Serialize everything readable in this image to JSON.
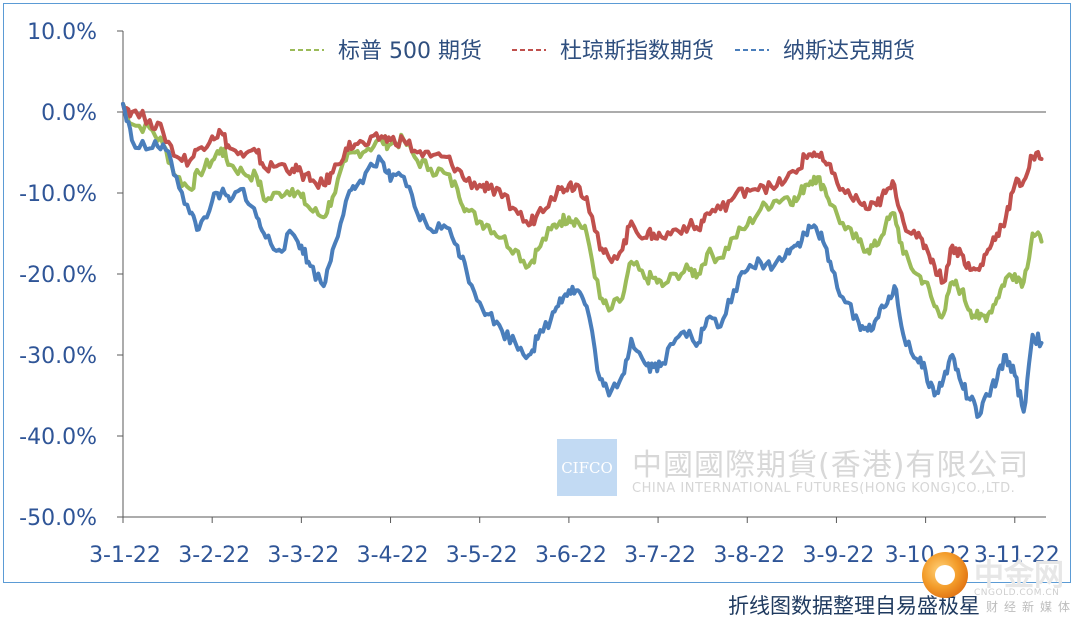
{
  "chart_data": {
    "type": "line",
    "title": "",
    "xlabel": "",
    "ylabel": "",
    "ylim": [
      -50,
      10
    ],
    "yticks": [
      10,
      0,
      -10,
      -20,
      -30,
      -40,
      -50
    ],
    "ytick_labels": [
      "10.0%",
      "0.0%",
      "-10.0%",
      "-20.0%",
      "-30.0%",
      "-40.0%",
      "-50.0%"
    ],
    "xticks": [
      0,
      1,
      2,
      3,
      4,
      5,
      6,
      7,
      8,
      9,
      10
    ],
    "xtick_labels": [
      "3-1-22",
      "3-2-22",
      "3-3-22",
      "3-4-22",
      "3-5-22",
      "3-6-22",
      "3-7-22",
      "3-8-22",
      "3-9-22",
      "3-10-22",
      "3-11-22"
    ],
    "xlim": [
      0,
      10.35
    ],
    "grid": false,
    "legend_position": "top",
    "series": [
      {
        "name": "标普 500 期货",
        "color": "#9bbb59",
        "points": [
          [
            0,
            1.0
          ],
          [
            0.1,
            -1.5
          ],
          [
            0.3,
            -2.0
          ],
          [
            0.45,
            -4.0
          ],
          [
            0.6,
            -8.0
          ],
          [
            0.75,
            -9.5
          ],
          [
            0.85,
            -7.5
          ],
          [
            1.0,
            -6.0
          ],
          [
            1.1,
            -4.5
          ],
          [
            1.2,
            -6.5
          ],
          [
            1.35,
            -7.5
          ],
          [
            1.5,
            -8.0
          ],
          [
            1.6,
            -11.0
          ],
          [
            1.75,
            -10.0
          ],
          [
            1.9,
            -9.5
          ],
          [
            2.0,
            -10.5
          ],
          [
            2.1,
            -12.0
          ],
          [
            2.25,
            -13.0
          ],
          [
            2.35,
            -10.5
          ],
          [
            2.5,
            -6.0
          ],
          [
            2.6,
            -5.0
          ],
          [
            2.75,
            -4.5
          ],
          [
            2.9,
            -3.5
          ],
          [
            3.0,
            -4.0
          ],
          [
            3.15,
            -3.5
          ],
          [
            3.3,
            -6.0
          ],
          [
            3.45,
            -7.0
          ],
          [
            3.6,
            -7.5
          ],
          [
            3.75,
            -9.5
          ],
          [
            3.85,
            -12.0
          ],
          [
            4.0,
            -13.5
          ],
          [
            4.1,
            -14.0
          ],
          [
            4.25,
            -15.5
          ],
          [
            4.4,
            -17.0
          ],
          [
            4.55,
            -19.0
          ],
          [
            4.65,
            -17.0
          ],
          [
            4.8,
            -14.5
          ],
          [
            4.9,
            -13.5
          ],
          [
            5.0,
            -13.0
          ],
          [
            5.1,
            -13.5
          ],
          [
            5.2,
            -15.0
          ],
          [
            5.35,
            -23.0
          ],
          [
            5.45,
            -24.5
          ],
          [
            5.6,
            -23.0
          ],
          [
            5.7,
            -18.5
          ],
          [
            5.85,
            -20.5
          ],
          [
            5.95,
            -20.5
          ],
          [
            6.05,
            -21.5
          ],
          [
            6.2,
            -20.0
          ],
          [
            6.35,
            -19.5
          ],
          [
            6.45,
            -20.0
          ],
          [
            6.55,
            -17.5
          ],
          [
            6.7,
            -18.0
          ],
          [
            6.85,
            -15.5
          ],
          [
            7.0,
            -14.0
          ],
          [
            7.15,
            -12.0
          ],
          [
            7.3,
            -11.0
          ],
          [
            7.45,
            -10.5
          ],
          [
            7.55,
            -11.0
          ],
          [
            7.65,
            -9.0
          ],
          [
            7.75,
            -8.0
          ],
          [
            7.85,
            -9.0
          ],
          [
            7.95,
            -11.5
          ],
          [
            8.1,
            -14.5
          ],
          [
            8.25,
            -16.0
          ],
          [
            8.35,
            -17.0
          ],
          [
            8.45,
            -16.5
          ],
          [
            8.55,
            -14.0
          ],
          [
            8.65,
            -12.5
          ],
          [
            8.75,
            -17.5
          ],
          [
            8.9,
            -20.0
          ],
          [
            9.0,
            -21.0
          ],
          [
            9.1,
            -24.0
          ],
          [
            9.2,
            -25.0
          ],
          [
            9.3,
            -21.0
          ],
          [
            9.4,
            -22.0
          ],
          [
            9.5,
            -24.5
          ],
          [
            9.6,
            -25.5
          ],
          [
            9.7,
            -25.0
          ],
          [
            9.8,
            -23.0
          ],
          [
            9.9,
            -20.5
          ],
          [
            10.0,
            -20.0
          ],
          [
            10.1,
            -21.0
          ],
          [
            10.2,
            -15.0
          ],
          [
            10.3,
            -16.0
          ]
        ]
      },
      {
        "name": "杜琼斯指数期货",
        "color": "#c0504d",
        "points": [
          [
            0,
            1.0
          ],
          [
            0.1,
            0.0
          ],
          [
            0.3,
            -1.0
          ],
          [
            0.45,
            -2.5
          ],
          [
            0.6,
            -5.5
          ],
          [
            0.75,
            -6.0
          ],
          [
            0.85,
            -4.5
          ],
          [
            1.0,
            -3.0
          ],
          [
            1.1,
            -2.5
          ],
          [
            1.2,
            -4.5
          ],
          [
            1.35,
            -5.5
          ],
          [
            1.5,
            -5.0
          ],
          [
            1.6,
            -7.0
          ],
          [
            1.75,
            -6.5
          ],
          [
            1.9,
            -7.0
          ],
          [
            2.0,
            -7.5
          ],
          [
            2.1,
            -8.5
          ],
          [
            2.25,
            -9.0
          ],
          [
            2.35,
            -7.5
          ],
          [
            2.5,
            -4.5
          ],
          [
            2.6,
            -4.0
          ],
          [
            2.75,
            -4.0
          ],
          [
            2.9,
            -3.0
          ],
          [
            3.0,
            -3.5
          ],
          [
            3.15,
            -3.5
          ],
          [
            3.3,
            -5.0
          ],
          [
            3.45,
            -5.5
          ],
          [
            3.6,
            -5.5
          ],
          [
            3.75,
            -7.0
          ],
          [
            3.85,
            -8.5
          ],
          [
            4.0,
            -9.0
          ],
          [
            4.1,
            -9.5
          ],
          [
            4.25,
            -10.5
          ],
          [
            4.4,
            -12.0
          ],
          [
            4.55,
            -14.0
          ],
          [
            4.65,
            -12.5
          ],
          [
            4.8,
            -10.5
          ],
          [
            4.9,
            -9.5
          ],
          [
            5.0,
            -9.0
          ],
          [
            5.1,
            -9.0
          ],
          [
            5.2,
            -10.5
          ],
          [
            5.35,
            -17.0
          ],
          [
            5.45,
            -18.0
          ],
          [
            5.6,
            -17.0
          ],
          [
            5.7,
            -13.5
          ],
          [
            5.85,
            -15.5
          ],
          [
            5.95,
            -15.0
          ],
          [
            6.05,
            -15.5
          ],
          [
            6.2,
            -14.5
          ],
          [
            6.35,
            -14.0
          ],
          [
            6.45,
            -14.5
          ],
          [
            6.55,
            -12.5
          ],
          [
            6.7,
            -12.0
          ],
          [
            6.85,
            -10.5
          ],
          [
            7.0,
            -9.5
          ],
          [
            7.15,
            -9.0
          ],
          [
            7.3,
            -9.5
          ],
          [
            7.45,
            -8.0
          ],
          [
            7.55,
            -7.5
          ],
          [
            7.65,
            -5.5
          ],
          [
            7.75,
            -5.0
          ],
          [
            7.85,
            -6.0
          ],
          [
            7.95,
            -7.5
          ],
          [
            8.1,
            -10.0
          ],
          [
            8.25,
            -11.0
          ],
          [
            8.35,
            -12.0
          ],
          [
            8.45,
            -11.5
          ],
          [
            8.55,
            -10.0
          ],
          [
            8.65,
            -9.0
          ],
          [
            8.75,
            -13.5
          ],
          [
            8.9,
            -15.5
          ],
          [
            9.0,
            -16.5
          ],
          [
            9.1,
            -19.0
          ],
          [
            9.2,
            -21.0
          ],
          [
            9.3,
            -16.5
          ],
          [
            9.4,
            -17.5
          ],
          [
            9.5,
            -19.5
          ],
          [
            9.6,
            -19.5
          ],
          [
            9.7,
            -17.0
          ],
          [
            9.8,
            -15.0
          ],
          [
            9.9,
            -13.0
          ],
          [
            10.0,
            -9.0
          ],
          [
            10.1,
            -8.5
          ],
          [
            10.2,
            -5.5
          ],
          [
            10.3,
            -5.8
          ]
        ]
      },
      {
        "name": "纳斯达克期货",
        "color": "#4a7ebb",
        "points": [
          [
            0,
            1.0
          ],
          [
            0.1,
            -3.5
          ],
          [
            0.3,
            -4.5
          ],
          [
            0.45,
            -4.0
          ],
          [
            0.6,
            -8.0
          ],
          [
            0.75,
            -12.5
          ],
          [
            0.85,
            -14.5
          ],
          [
            1.0,
            -11.0
          ],
          [
            1.1,
            -10.0
          ],
          [
            1.2,
            -11.0
          ],
          [
            1.35,
            -9.5
          ],
          [
            1.5,
            -13.0
          ],
          [
            1.6,
            -15.5
          ],
          [
            1.75,
            -17.0
          ],
          [
            1.9,
            -15.0
          ],
          [
            2.0,
            -16.5
          ],
          [
            2.1,
            -19.0
          ],
          [
            2.25,
            -21.5
          ],
          [
            2.35,
            -17.0
          ],
          [
            2.5,
            -11.0
          ],
          [
            2.6,
            -9.5
          ],
          [
            2.75,
            -7.0
          ],
          [
            2.9,
            -6.0
          ],
          [
            3.0,
            -8.5
          ],
          [
            3.15,
            -8.0
          ],
          [
            3.3,
            -12.5
          ],
          [
            3.45,
            -14.5
          ],
          [
            3.6,
            -14.0
          ],
          [
            3.75,
            -16.5
          ],
          [
            3.85,
            -19.5
          ],
          [
            4.0,
            -23.5
          ],
          [
            4.1,
            -25.0
          ],
          [
            4.25,
            -27.0
          ],
          [
            4.4,
            -28.5
          ],
          [
            4.55,
            -30.0
          ],
          [
            4.65,
            -28.0
          ],
          [
            4.8,
            -25.5
          ],
          [
            4.9,
            -23.0
          ],
          [
            5.0,
            -22.0
          ],
          [
            5.1,
            -22.0
          ],
          [
            5.2,
            -24.0
          ],
          [
            5.35,
            -33.0
          ],
          [
            5.45,
            -35.0
          ],
          [
            5.6,
            -32.5
          ],
          [
            5.7,
            -28.0
          ],
          [
            5.85,
            -31.0
          ],
          [
            5.95,
            -31.5
          ],
          [
            6.05,
            -31.0
          ],
          [
            6.2,
            -28.0
          ],
          [
            6.35,
            -27.0
          ],
          [
            6.45,
            -28.5
          ],
          [
            6.55,
            -25.5
          ],
          [
            6.7,
            -26.5
          ],
          [
            6.85,
            -22.0
          ],
          [
            7.0,
            -19.5
          ],
          [
            7.15,
            -18.5
          ],
          [
            7.3,
            -19.0
          ],
          [
            7.45,
            -17.0
          ],
          [
            7.55,
            -16.5
          ],
          [
            7.65,
            -15.0
          ],
          [
            7.75,
            -14.0
          ],
          [
            7.85,
            -16.0
          ],
          [
            7.95,
            -19.5
          ],
          [
            8.1,
            -23.5
          ],
          [
            8.25,
            -26.0
          ],
          [
            8.35,
            -27.0
          ],
          [
            8.45,
            -25.5
          ],
          [
            8.55,
            -24.0
          ],
          [
            8.65,
            -21.5
          ],
          [
            8.75,
            -27.5
          ],
          [
            8.9,
            -30.5
          ],
          [
            9.0,
            -32.0
          ],
          [
            9.1,
            -35.0
          ],
          [
            9.2,
            -33.0
          ],
          [
            9.3,
            -30.0
          ],
          [
            9.4,
            -33.5
          ],
          [
            9.5,
            -35.5
          ],
          [
            9.6,
            -37.5
          ],
          [
            9.7,
            -35.0
          ],
          [
            9.8,
            -33.0
          ],
          [
            9.9,
            -30.0
          ],
          [
            10.0,
            -32.5
          ],
          [
            10.1,
            -37.0
          ],
          [
            10.2,
            -27.5
          ],
          [
            10.3,
            -28.5
          ]
        ]
      }
    ]
  },
  "watermark": {
    "logo_text": "CIFCO",
    "company_cn": "中國國際期貨(香港)有限公司",
    "company_en": "CHINA INTERNATIONAL FUTURES(HONG KONG)CO.,LTD."
  },
  "source_note": "折线图数据整理自易盛极星",
  "corner_logo": {
    "name": "中金网",
    "domain": "CNGOLD.COM.CN",
    "tagline": "财经新媒体"
  },
  "colors": {
    "axis": "#595959",
    "tick_text": "#2f5597",
    "frame": "#5b9bd5",
    "watermark_box": "#bcd6f2"
  }
}
